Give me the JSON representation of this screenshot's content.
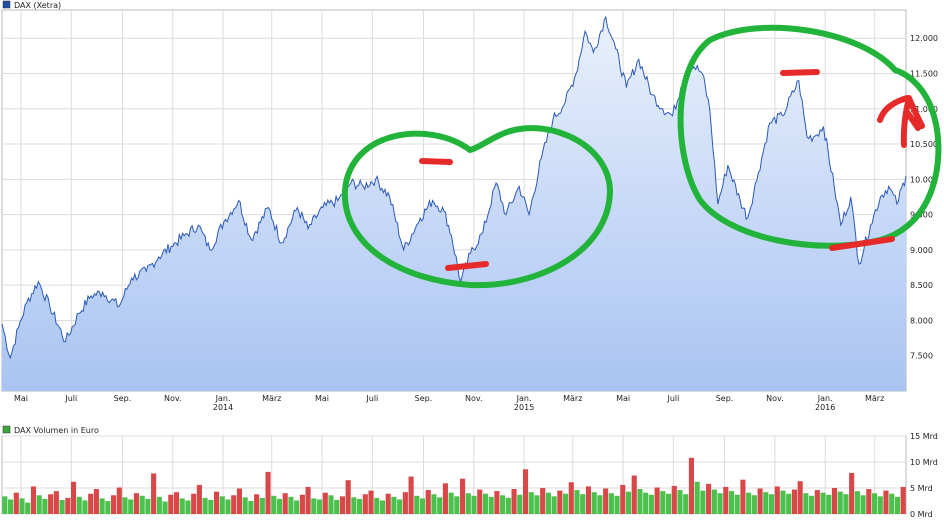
{
  "chart_data": [
    {
      "type": "area",
      "legend": {
        "label": "DAX (Xetra)",
        "color": "#1f4fa6",
        "placement": "top-left"
      },
      "ylim": [
        7000,
        12400
      ],
      "y_ticks": [
        {
          "value": 7500,
          "label": "7.500"
        },
        {
          "value": 8000,
          "label": "8.000"
        },
        {
          "value": 8500,
          "label": "8.500"
        },
        {
          "value": 9000,
          "label": "9.000"
        },
        {
          "value": 9500,
          "label": "9.500"
        },
        {
          "value": 10000,
          "label": "10.000"
        },
        {
          "value": 10500,
          "label": "10.500"
        },
        {
          "value": 11000,
          "label": "11.000"
        },
        {
          "value": 11500,
          "label": "11.500"
        },
        {
          "value": 12000,
          "label": "12.000"
        }
      ],
      "xlim": [
        "2013-04-08",
        "2016-04-08"
      ],
      "x_ticks": [
        {
          "date": "2013-05-01",
          "label": "Mai",
          "year": ""
        },
        {
          "date": "2013-07-01",
          "label": "Juli",
          "year": ""
        },
        {
          "date": "2013-09-01",
          "label": "Sep.",
          "year": ""
        },
        {
          "date": "2013-11-01",
          "label": "Nov.",
          "year": ""
        },
        {
          "date": "2014-01-01",
          "label": "Jan.",
          "year": "2014"
        },
        {
          "date": "2014-03-01",
          "label": "März",
          "year": ""
        },
        {
          "date": "2014-05-01",
          "label": "Mai",
          "year": ""
        },
        {
          "date": "2014-07-01",
          "label": "Juli",
          "year": ""
        },
        {
          "date": "2014-09-01",
          "label": "Sep.",
          "year": ""
        },
        {
          "date": "2014-11-01",
          "label": "Nov.",
          "year": ""
        },
        {
          "date": "2015-01-01",
          "label": "Jan.",
          "year": "2015"
        },
        {
          "date": "2015-03-01",
          "label": "März",
          "year": ""
        },
        {
          "date": "2015-05-01",
          "label": "Mai",
          "year": ""
        },
        {
          "date": "2015-07-01",
          "label": "Juli",
          "year": ""
        },
        {
          "date": "2015-09-01",
          "label": "Sep.",
          "year": ""
        },
        {
          "date": "2015-11-01",
          "label": "Nov.",
          "year": ""
        },
        {
          "date": "2016-01-01",
          "label": "Jan.",
          "year": "2016"
        },
        {
          "date": "2016-03-01",
          "label": "März",
          "year": ""
        }
      ],
      "grid": true,
      "colors": {
        "line": "#2b59b8",
        "area_top": "#e9f0fc",
        "area_bottom": "#a9c4f2",
        "grid": "#dcdcdc"
      },
      "series": [
        {
          "name": "DAX (Xetra)",
          "points": [
            [
              "2013-04-08",
              7950
            ],
            [
              "2013-04-18",
              7470
            ],
            [
              "2013-04-28",
              7900
            ],
            [
              "2013-05-08",
              8250
            ],
            [
              "2013-05-22",
              8550
            ],
            [
              "2013-06-05",
              8200
            ],
            [
              "2013-06-24",
              7700
            ],
            [
              "2013-07-10",
              8100
            ],
            [
              "2013-07-25",
              8350
            ],
            [
              "2013-08-08",
              8400
            ],
            [
              "2013-08-28",
              8200
            ],
            [
              "2013-09-12",
              8600
            ],
            [
              "2013-09-30",
              8700
            ],
            [
              "2013-10-15",
              8900
            ],
            [
              "2013-10-30",
              9050
            ],
            [
              "2013-11-15",
              9200
            ],
            [
              "2013-12-02",
              9350
            ],
            [
              "2013-12-16",
              9000
            ],
            [
              "2014-01-02",
              9400
            ],
            [
              "2014-01-20",
              9700
            ],
            [
              "2014-02-04",
              9150
            ],
            [
              "2014-02-25",
              9600
            ],
            [
              "2014-03-13",
              9100
            ],
            [
              "2014-04-01",
              9600
            ],
            [
              "2014-04-14",
              9300
            ],
            [
              "2014-05-02",
              9600
            ],
            [
              "2014-05-20",
              9700
            ],
            [
              "2014-06-05",
              9950
            ],
            [
              "2014-06-20",
              9900
            ],
            [
              "2014-07-05",
              10000
            ],
            [
              "2014-07-22",
              9750
            ],
            [
              "2014-08-08",
              9000
            ],
            [
              "2014-08-28",
              9450
            ],
            [
              "2014-09-12",
              9700
            ],
            [
              "2014-09-26",
              9550
            ],
            [
              "2014-10-05",
              9200
            ],
            [
              "2014-10-16",
              8550
            ],
            [
              "2014-10-28",
              8950
            ],
            [
              "2014-11-12",
              9250
            ],
            [
              "2014-11-28",
              9950
            ],
            [
              "2014-12-10",
              9500
            ],
            [
              "2014-12-26",
              9900
            ],
            [
              "2015-01-07",
              9500
            ],
            [
              "2015-01-22",
              10300
            ],
            [
              "2015-02-05",
              10850
            ],
            [
              "2015-02-20",
              11100
            ],
            [
              "2015-03-05",
              11500
            ],
            [
              "2015-03-16",
              12100
            ],
            [
              "2015-03-26",
              11800
            ],
            [
              "2015-04-10",
              12300
            ],
            [
              "2015-04-22",
              11850
            ],
            [
              "2015-05-05",
              11300
            ],
            [
              "2015-05-20",
              11700
            ],
            [
              "2015-06-05",
              11200
            ],
            [
              "2015-06-18",
              11000
            ],
            [
              "2015-06-30",
              10900
            ],
            [
              "2015-07-10",
              11300
            ],
            [
              "2015-07-22",
              11650
            ],
            [
              "2015-08-05",
              11500
            ],
            [
              "2015-08-14",
              11000
            ],
            [
              "2015-08-24",
              9650
            ],
            [
              "2015-09-05",
              10200
            ],
            [
              "2015-09-20",
              9700
            ],
            [
              "2015-09-29",
              9450
            ],
            [
              "2015-10-12",
              10100
            ],
            [
              "2015-10-26",
              10800
            ],
            [
              "2015-11-10",
              10900
            ],
            [
              "2015-11-30",
              11400
            ],
            [
              "2015-12-10",
              10600
            ],
            [
              "2015-12-18",
              10600
            ],
            [
              "2015-12-30",
              10750
            ],
            [
              "2016-01-12",
              9900
            ],
            [
              "2016-01-20",
              9350
            ],
            [
              "2016-02-01",
              9750
            ],
            [
              "2016-02-11",
              8800
            ],
            [
              "2016-02-25",
              9350
            ],
            [
              "2016-03-08",
              9750
            ],
            [
              "2016-03-18",
              9900
            ],
            [
              "2016-03-28",
              9650
            ],
            [
              "2016-04-08",
              10050
            ]
          ]
        }
      ]
    },
    {
      "type": "bar",
      "legend": {
        "label": "DAX Volumen in Euro",
        "color": "#3aa53a",
        "placement": "top-left"
      },
      "ylim": [
        0,
        15
      ],
      "y_ticks": [
        {
          "value": 0,
          "label": "0 Mrd"
        },
        {
          "value": 5,
          "label": "5 Mrd"
        },
        {
          "value": 10,
          "label": "10 Mrd"
        },
        {
          "value": 15,
          "label": "15 Mrd"
        }
      ],
      "colors": {
        "up": "#4cc04c",
        "down": "#d94848"
      },
      "series": [
        {
          "name": "DAX Volumen in Euro",
          "values": [
            3.4,
            2.8,
            4.1,
            3.0,
            2.2,
            5.3,
            3.6,
            2.9,
            3.8,
            4.4,
            2.7,
            3.1,
            6.2,
            3.3,
            2.6,
            3.9,
            4.8,
            3.0,
            2.5,
            3.6,
            5.1,
            3.2,
            2.8,
            4.0,
            3.5,
            2.9,
            7.8,
            3.3,
            2.4,
            3.7,
            4.2,
            3.0,
            2.6,
            3.9,
            5.6,
            3.1,
            2.7,
            4.3,
            3.4,
            2.8,
            3.6,
            4.9,
            3.2,
            2.5,
            3.8,
            3.1,
            8.1,
            3.5,
            2.9,
            4.0,
            3.3,
            2.6,
            3.7,
            5.2,
            3.0,
            2.8,
            4.1,
            3.6,
            2.7,
            3.4,
            6.5,
            3.2,
            2.9,
            3.8,
            4.5,
            3.1,
            2.6,
            3.9,
            3.3,
            2.8,
            4.2,
            7.2,
            3.5,
            3.0,
            4.6,
            3.8,
            3.2,
            5.9,
            4.1,
            3.4,
            6.8,
            4.0,
            3.5,
            4.7,
            3.9,
            3.3,
            4.4,
            3.6,
            3.1,
            4.8,
            3.7,
            8.6,
            4.2,
            3.6,
            5.0,
            4.1,
            3.4,
            4.5,
            3.9,
            6.1,
            4.6,
            3.8,
            5.3,
            4.2,
            3.6,
            4.9,
            4.0,
            3.5,
            5.6,
            4.3,
            7.4,
            4.8,
            4.1,
            3.7,
            5.1,
            4.4,
            3.9,
            5.4,
            4.6,
            3.8,
            10.8,
            6.2,
            4.5,
            5.8,
            4.7,
            4.0,
            5.2,
            4.4,
            3.7,
            6.6,
            4.1,
            3.6,
            4.9,
            4.2,
            3.8,
            5.3,
            4.5,
            3.9,
            4.7,
            6.3,
            4.0,
            3.5,
            4.6,
            4.1,
            3.7,
            5.0,
            4.3,
            3.8,
            7.9,
            4.4,
            3.6,
            4.8,
            4.0,
            3.4,
            4.5,
            3.9,
            3.3,
            5.2
          ]
        }
      ]
    }
  ]
}
